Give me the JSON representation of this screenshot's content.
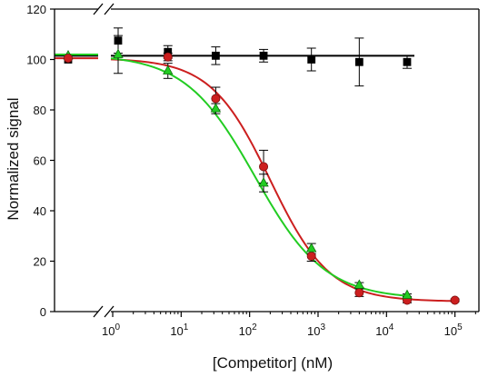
{
  "chart_data": {
    "type": "scatter",
    "xlabel": "[Competitor] (nM)",
    "ylabel": "Normalized signal",
    "x_scale": "log",
    "x_axis_break": true,
    "xlim_log": [
      -0.85,
      5.35
    ],
    "ylim": [
      0,
      120
    ],
    "y_ticks": [
      0,
      20,
      40,
      60,
      80,
      100,
      120
    ],
    "y_tick_labels": [
      "0",
      "20",
      "40",
      "60",
      "80",
      "100",
      "120"
    ],
    "x_ticks_exponent": [
      0,
      1,
      2,
      3,
      4,
      5
    ],
    "x_tick_base": "10",
    "x_tick_exponents": [
      "0",
      "1",
      "2",
      "3",
      "4",
      "5"
    ],
    "grid": false,
    "legend": "none",
    "zero_concentration_points": [
      {
        "series": "black",
        "y": 100,
        "yerr": 0
      },
      {
        "series": "green",
        "y": 101.5,
        "yerr": 0
      },
      {
        "series": "red",
        "y": 100.5,
        "yerr": 0
      }
    ],
    "series": [
      {
        "marker": "square",
        "color": "#000000",
        "x": [
          1.2,
          6.4,
          32,
          160,
          800,
          4000,
          20000
        ],
        "y": [
          107.5,
          103,
          101.5,
          101.5,
          100,
          99,
          99
        ],
        "yerr": [
          5,
          2.5,
          3.5,
          2.5,
          4.5,
          9.5,
          2.5
        ],
        "fit": "flat",
        "fit_value": 101.5
      },
      {
        "marker": "circle",
        "color": "#cc1f1f",
        "x": [
          6.4,
          32,
          160,
          800,
          4000,
          20000,
          100000
        ],
        "y": [
          101,
          84.5,
          57.5,
          22,
          7.5,
          4.5,
          4.5
        ],
        "yerr": [
          1.5,
          4.5,
          6.5,
          2,
          1.5,
          1,
          0.5
        ],
        "fit": "sigmoid",
        "fit_top": 100.5,
        "fit_bottom": 4,
        "fit_log_ic50": 2.3,
        "fit_slope": 1.0
      },
      {
        "marker": "triangle",
        "color": "#22cc22",
        "x": [
          1.2,
          6.4,
          32,
          160,
          800,
          4000,
          20000
        ],
        "y": [
          102,
          95.5,
          80.5,
          51,
          25,
          10.5,
          6.5
        ],
        "yerr": [
          7.5,
          3,
          2,
          3.5,
          2,
          1,
          0.5
        ],
        "fit": "sigmoid",
        "fit_top": 102,
        "fit_bottom": 5,
        "fit_log_ic50": 2.08,
        "fit_slope": 0.85
      }
    ]
  }
}
